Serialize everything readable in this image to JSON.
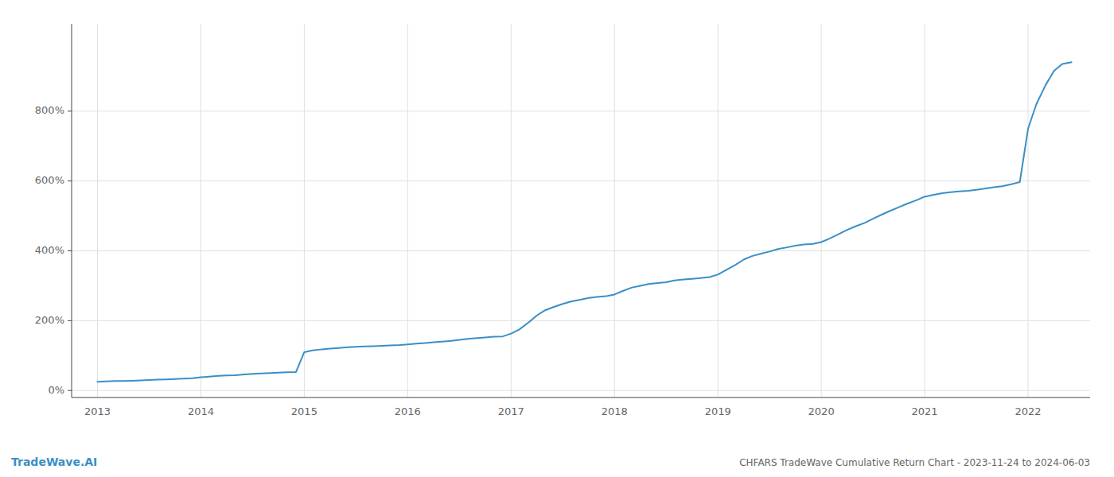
{
  "chart_data": {
    "type": "line",
    "title": "CHFARS TradeWave Cumulative Return Chart - 2023-11-24 to 2024-06-03",
    "annotations": [
      "TradeWave.AI"
    ],
    "color": "#3a8fc7",
    "grid": true,
    "x": [
      2013.0,
      2013.08,
      2013.17,
      2013.25,
      2013.33,
      2013.42,
      2013.5,
      2013.58,
      2013.67,
      2013.75,
      2013.83,
      2013.92,
      2014.0,
      2014.08,
      2014.17,
      2014.25,
      2014.33,
      2014.42,
      2014.5,
      2014.58,
      2014.67,
      2014.75,
      2014.83,
      2014.92,
      2015.0,
      2015.08,
      2015.17,
      2015.25,
      2015.33,
      2015.42,
      2015.5,
      2015.58,
      2015.67,
      2015.75,
      2015.83,
      2015.92,
      2016.0,
      2016.08,
      2016.17,
      2016.25,
      2016.33,
      2016.42,
      2016.5,
      2016.58,
      2016.67,
      2016.75,
      2016.83,
      2016.92,
      2017.0,
      2017.08,
      2017.17,
      2017.25,
      2017.33,
      2017.42,
      2017.5,
      2017.58,
      2017.67,
      2017.75,
      2017.83,
      2017.92,
      2018.0,
      2018.08,
      2018.17,
      2018.25,
      2018.33,
      2018.42,
      2018.5,
      2018.58,
      2018.67,
      2018.75,
      2018.83,
      2018.92,
      2019.0,
      2019.08,
      2019.17,
      2019.25,
      2019.33,
      2019.42,
      2019.5,
      2019.58,
      2019.67,
      2019.75,
      2019.83,
      2019.92,
      2020.0,
      2020.08,
      2020.17,
      2020.25,
      2020.33,
      2020.42,
      2020.5,
      2020.58,
      2020.67,
      2020.75,
      2020.83,
      2020.92,
      2021.0,
      2021.08,
      2021.17,
      2021.25,
      2021.33,
      2021.42,
      2021.5,
      2021.58,
      2021.67,
      2021.75,
      2021.83,
      2021.92,
      2022.0,
      2022.08,
      2022.17,
      2022.25,
      2022.33,
      2022.42
    ],
    "values": [
      25,
      26,
      27,
      27,
      28,
      29,
      30,
      31,
      32,
      33,
      34,
      35,
      38,
      40,
      42,
      43,
      44,
      46,
      48,
      49,
      50,
      51,
      52,
      53,
      110,
      115,
      118,
      120,
      122,
      124,
      125,
      126,
      127,
      128,
      129,
      130,
      132,
      134,
      136,
      138,
      140,
      142,
      145,
      148,
      150,
      152,
      154,
      155,
      163,
      175,
      195,
      215,
      230,
      240,
      248,
      255,
      260,
      265,
      268,
      270,
      275,
      285,
      295,
      300,
      305,
      308,
      310,
      315,
      318,
      320,
      322,
      325,
      332,
      345,
      360,
      375,
      385,
      392,
      398,
      405,
      410,
      415,
      418,
      420,
      425,
      435,
      448,
      460,
      470,
      480,
      492,
      503,
      515,
      525,
      535,
      545,
      555,
      560,
      565,
      568,
      570,
      572,
      575,
      578,
      582,
      585,
      590,
      597,
      750,
      820,
      875,
      915,
      935,
      940
    ],
    "xlim": [
      2012.75,
      2022.6
    ],
    "xticks": [
      2013,
      2014,
      2015,
      2016,
      2017,
      2018,
      2019,
      2020,
      2021,
      2022
    ],
    "ylim": [
      -20,
      1050
    ],
    "yticks": [
      {
        "value": 0,
        "label": "0%"
      },
      {
        "value": 200,
        "label": "200%"
      },
      {
        "value": 400,
        "label": "400%"
      },
      {
        "value": 600,
        "label": "600%"
      },
      {
        "value": 800,
        "label": "800%"
      }
    ]
  }
}
